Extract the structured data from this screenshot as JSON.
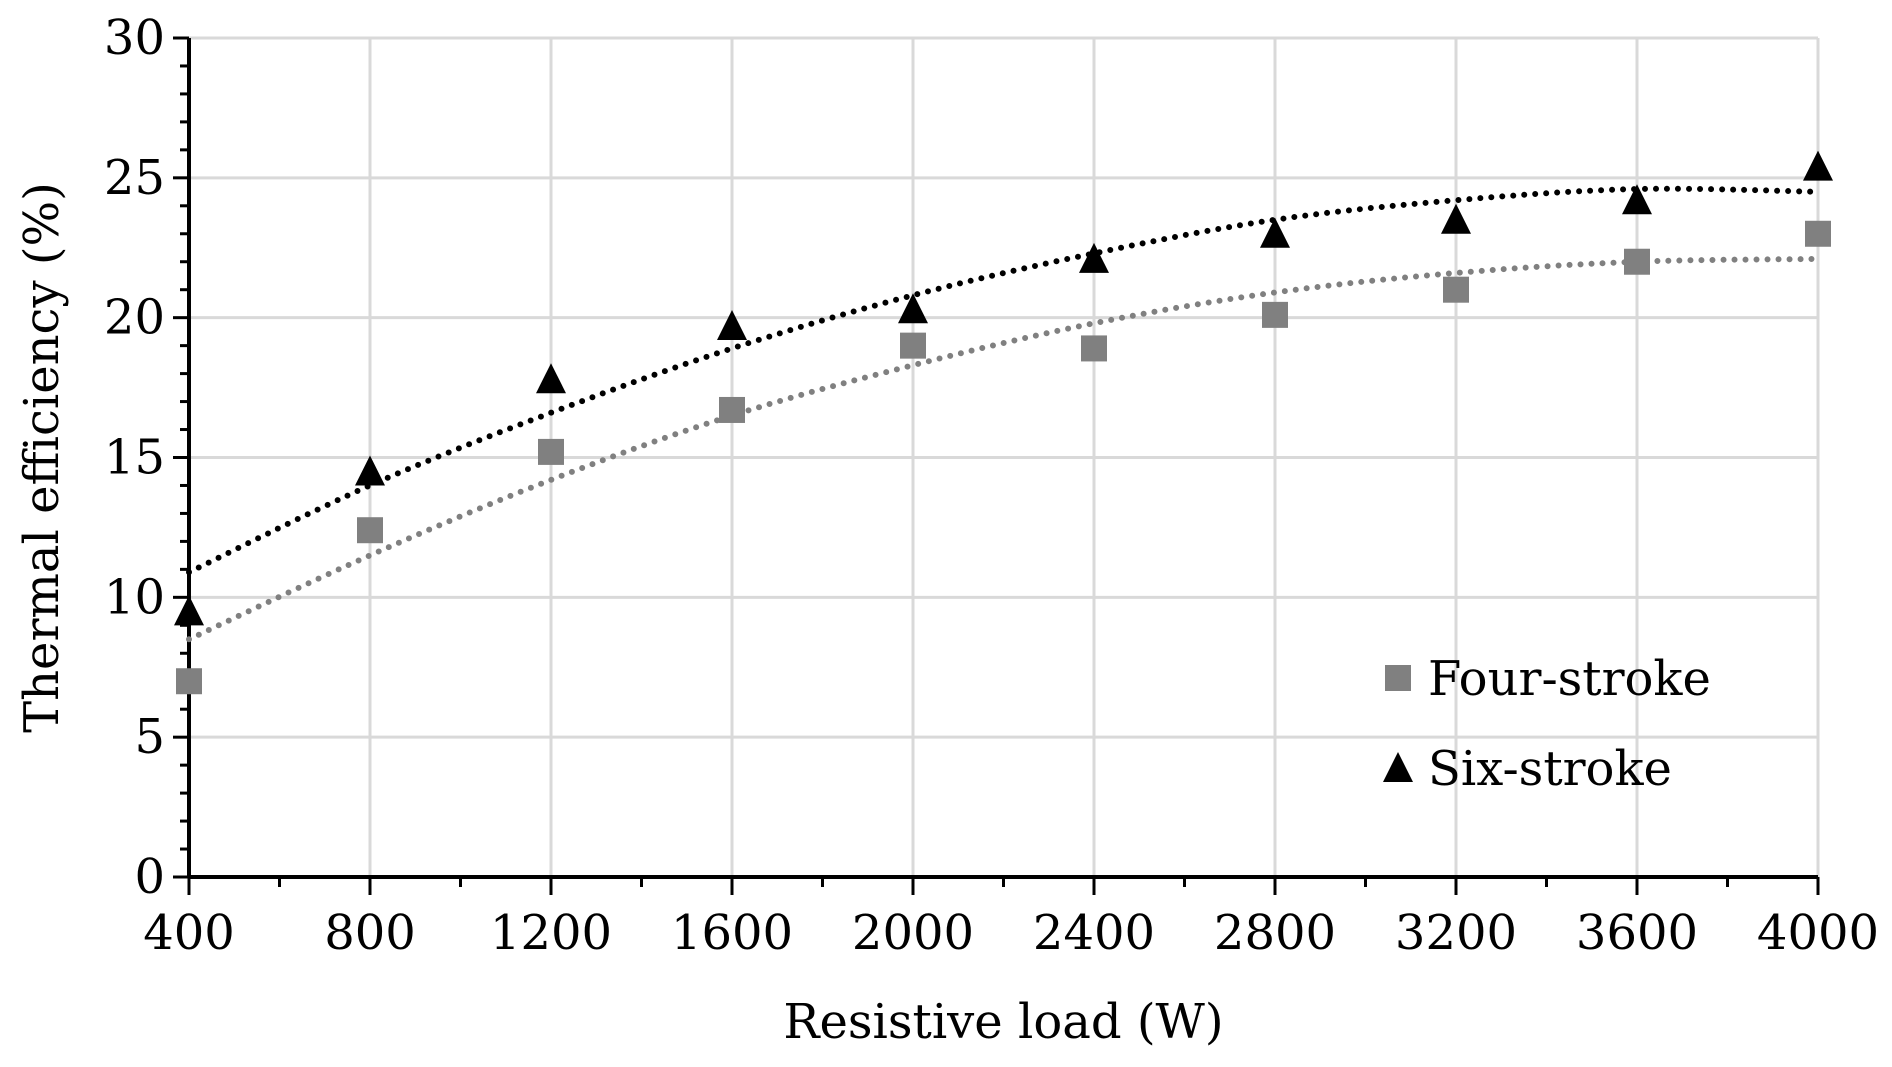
{
  "chart_data": {
    "type": "scatter",
    "xlabel": "Resistive load (W)",
    "ylabel": "Thermal efficiency (%)",
    "xlim": [
      400,
      4000
    ],
    "ylim": [
      0,
      30
    ],
    "x_ticks": [
      400,
      800,
      1200,
      1600,
      2000,
      2400,
      2800,
      3200,
      3600,
      4000
    ],
    "y_ticks": [
      0,
      5,
      10,
      15,
      20,
      25,
      30
    ],
    "grid": true,
    "legend_position": "bottom-right",
    "series": [
      {
        "name": "Four-stroke",
        "marker": "square",
        "color": "#808080",
        "x": [
          400,
          800,
          1200,
          1600,
          2000,
          2400,
          2800,
          3200,
          3600,
          4000
        ],
        "y": [
          7.0,
          12.4,
          15.2,
          16.7,
          19.0,
          18.9,
          20.1,
          21.0,
          22.0,
          23.0
        ],
        "trendline": {
          "style": "dotted",
          "color": "#808080",
          "y": [
            8.5,
            11.5,
            14.2,
            16.5,
            18.3,
            19.8,
            20.9,
            21.6,
            22.0,
            22.1
          ]
        }
      },
      {
        "name": "Six-stroke",
        "marker": "triangle",
        "color": "#000000",
        "x": [
          400,
          800,
          1200,
          1600,
          2000,
          2400,
          2800,
          3200,
          3600,
          4000
        ],
        "y": [
          9.5,
          14.5,
          17.8,
          19.7,
          20.3,
          22.1,
          23.0,
          23.5,
          24.2,
          25.4
        ],
        "trendline": {
          "style": "dotted",
          "color": "#000000",
          "y": [
            10.9,
            14.0,
            16.6,
            18.9,
            20.8,
            22.3,
            23.5,
            24.2,
            24.6,
            24.5
          ]
        }
      }
    ]
  }
}
